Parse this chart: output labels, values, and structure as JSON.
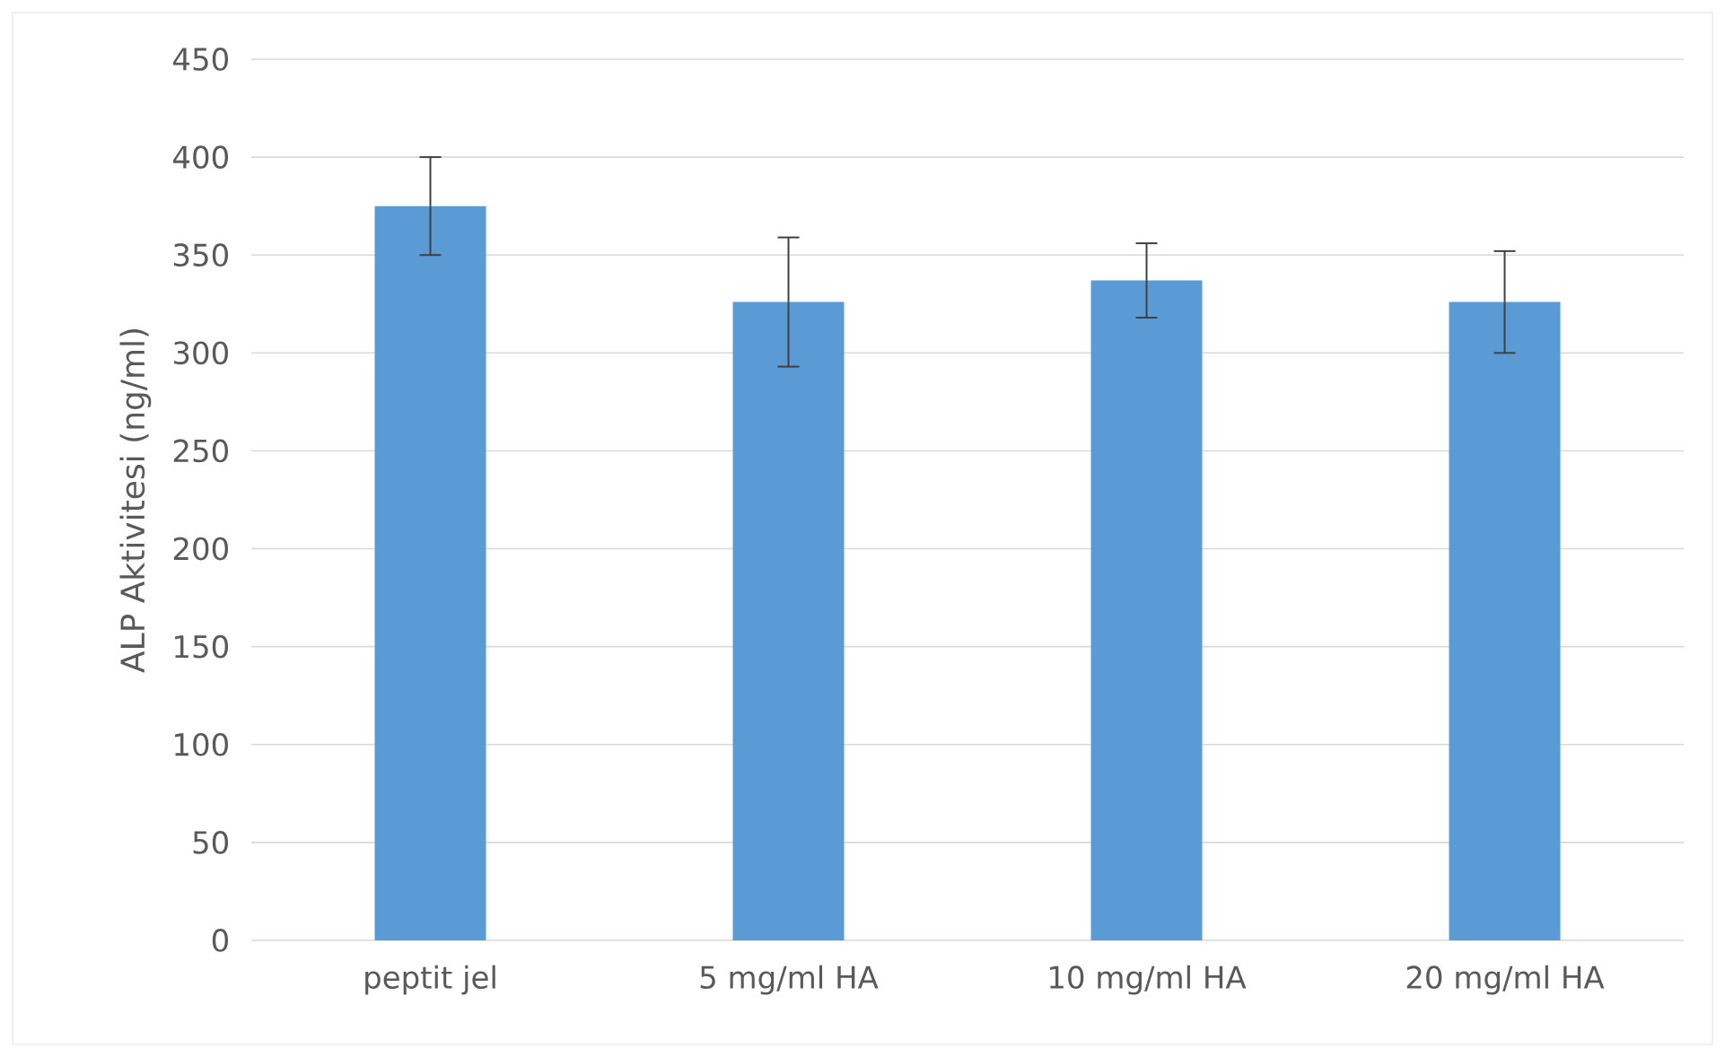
{
  "chart_data": {
    "type": "bar",
    "ylabel": "ALP Aktivitesi (ng/ml)",
    "categories": [
      "peptit jel",
      "5 mg/ml HA",
      "10 mg/ml HA",
      "20 mg/ml HA"
    ],
    "values": [
      375,
      326,
      337,
      326
    ],
    "errors": [
      25,
      33,
      19,
      26
    ],
    "color": "#5b9bd5",
    "ylim": [
      0,
      450
    ],
    "yticks": [
      0,
      50,
      100,
      150,
      200,
      250,
      300,
      350,
      400,
      450
    ],
    "grid": "y"
  }
}
